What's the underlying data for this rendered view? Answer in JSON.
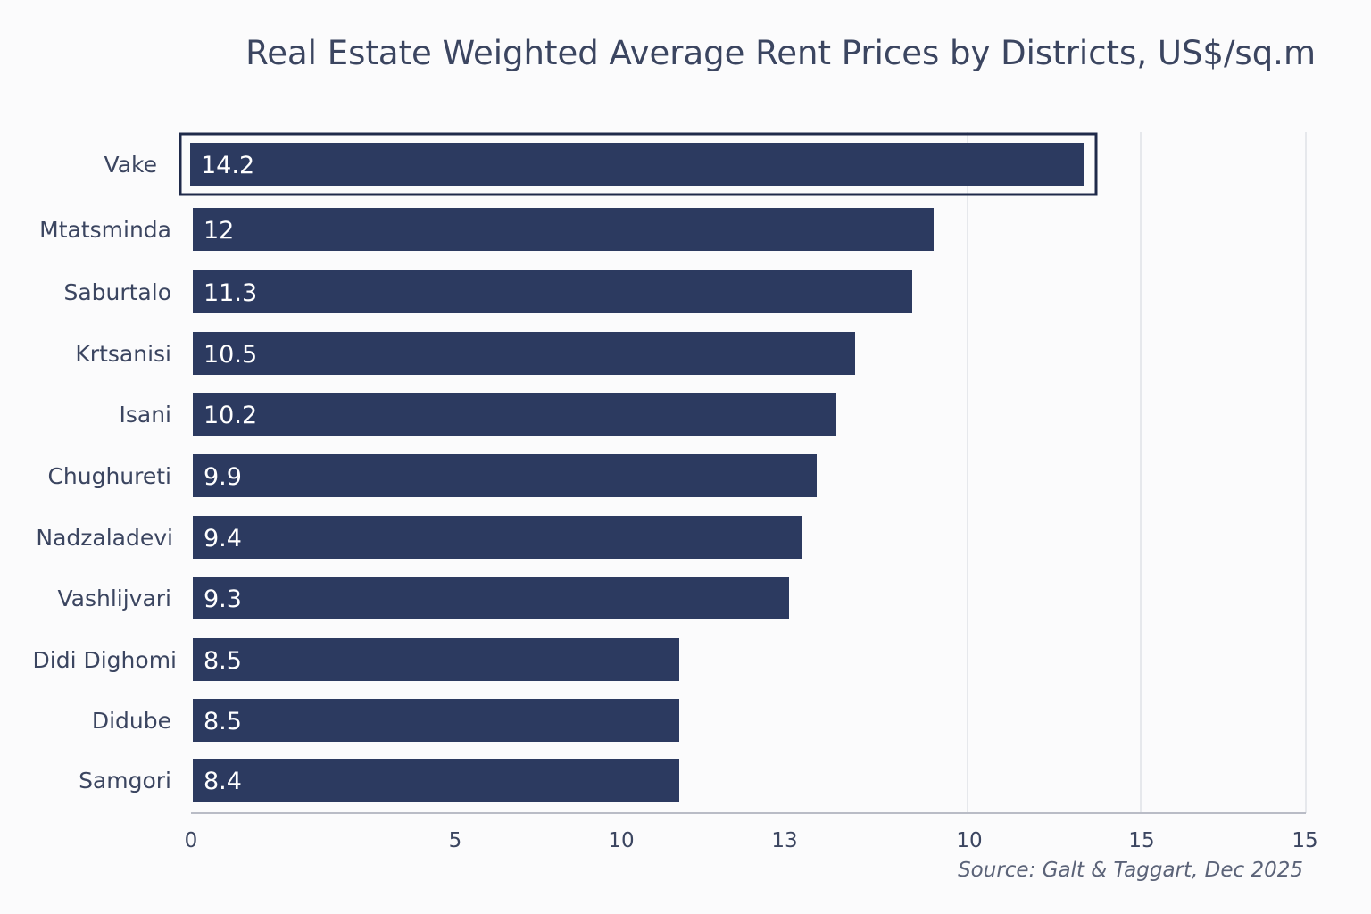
{
  "chart_data": {
    "type": "bar",
    "orientation": "horizontal",
    "title": "Real Estate Weighted Average Rent Prices by Districts, US$/sq.m",
    "categories": [
      "Vake",
      "Mtatsminda",
      "Saburtalo",
      "Krtsanisi",
      "Isani",
      "Chughureti",
      "Nadzaladevi",
      "Vashlijvari",
      "Didi Dighomi",
      "Didube",
      "Samgori"
    ],
    "values": [
      14.2,
      12,
      11.3,
      10.5,
      10.2,
      9.9,
      9.4,
      9.3,
      8.5,
      8.5,
      8.4
    ],
    "value_labels": [
      "14.2",
      "12",
      "11.3",
      "10.5",
      "10.2",
      "9.9",
      "9.4",
      "9.3",
      "8.5",
      "8.5",
      "8.4"
    ],
    "highlighted_category": "Vake",
    "x_tick_labels": [
      "0",
      "5",
      "10",
      "13",
      "10",
      "15",
      "15"
    ],
    "xlim": [
      0,
      16
    ],
    "grid": true,
    "bar_color": "#2c3a60",
    "highlight_border_color": "#1f2a4a",
    "gridline_color": "#dfe1e6",
    "axis_color": "#b9bcc6",
    "source": "Source: Galt & Taggart, Dec 2025"
  }
}
